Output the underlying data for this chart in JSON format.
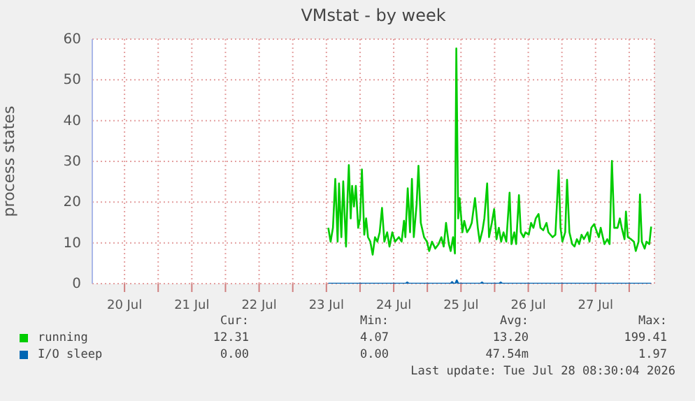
{
  "chart_data": {
    "type": "line",
    "title": "VMstat - by week",
    "ylabel": "process states",
    "xlim": [
      "2026-07-20T00:30",
      "2026-07-28T09:00"
    ],
    "ylim": [
      0,
      60
    ],
    "yticks": [
      0,
      10,
      20,
      30,
      40,
      50,
      60
    ],
    "xticks": [
      {
        "value": "2026-07-20T12:00",
        "label": "20 Jul"
      },
      {
        "value": "2026-07-21",
        "label": null
      },
      {
        "value": "2026-07-21T12:00",
        "label": "21 Jul"
      },
      {
        "value": "2026-07-22",
        "label": null
      },
      {
        "value": "2026-07-22T12:00",
        "label": "22 Jul"
      },
      {
        "value": "2026-07-23",
        "label": null
      },
      {
        "value": "2026-07-23T12:00",
        "label": "23 Jul"
      },
      {
        "value": "2026-07-24",
        "label": null
      },
      {
        "value": "2026-07-24T12:00",
        "label": "24 Jul"
      },
      {
        "value": "2026-07-25",
        "label": null
      },
      {
        "value": "2026-07-25T12:00",
        "label": "25 Jul"
      },
      {
        "value": "2026-07-26",
        "label": null
      },
      {
        "value": "2026-07-26T12:00",
        "label": "26 Jul"
      },
      {
        "value": "2026-07-27",
        "label": null
      },
      {
        "value": "2026-07-27T12:00",
        "label": "27 Jul"
      },
      {
        "value": "2026-07-28",
        "label": null
      }
    ],
    "grid": true,
    "legend": "bottom",
    "series": [
      {
        "name": "running",
        "color": "#00cc00",
        "x": [
          "2026-07-23T12:40",
          "2026-07-23T13:30",
          "2026-07-23T14:20",
          "2026-07-23T15:10",
          "2026-07-23T16:00",
          "2026-07-23T16:30",
          "2026-07-23T17:20",
          "2026-07-23T18:00",
          "2026-07-23T19:00",
          "2026-07-23T19:30",
          "2026-07-23T20:00",
          "2026-07-23T20:40",
          "2026-07-23T21:10",
          "2026-07-23T21:50",
          "2026-07-23T22:30",
          "2026-07-23T23:20",
          "2026-07-24T00:00",
          "2026-07-24T00:40",
          "2026-07-24T01:30",
          "2026-07-24T02:10",
          "2026-07-24T02:50",
          "2026-07-24T03:40",
          "2026-07-24T04:30",
          "2026-07-24T05:20",
          "2026-07-24T06:10",
          "2026-07-24T07:00",
          "2026-07-24T07:50",
          "2026-07-24T08:40",
          "2026-07-24T09:40",
          "2026-07-24T10:30",
          "2026-07-24T11:30",
          "2026-07-24T12:30",
          "2026-07-24T13:50",
          "2026-07-24T14:50",
          "2026-07-24T15:40",
          "2026-07-24T16:10",
          "2026-07-24T17:00",
          "2026-07-24T17:50",
          "2026-07-24T18:30",
          "2026-07-24T19:10",
          "2026-07-24T20:10",
          "2026-07-24T20:50",
          "2026-07-24T21:40",
          "2026-07-24T22:50",
          "2026-07-24T23:50",
          "2026-07-25T00:40",
          "2026-07-25T01:40",
          "2026-07-25T02:50",
          "2026-07-25T04:00",
          "2026-07-25T05:00",
          "2026-07-25T05:50",
          "2026-07-25T06:40",
          "2026-07-25T07:40",
          "2026-07-25T08:20",
          "2026-07-25T09:10",
          "2026-07-25T09:50",
          "2026-07-25T10:20",
          "2026-07-25T11:00",
          "2026-07-25T11:30",
          "2026-07-25T12:30",
          "2026-07-25T13:10",
          "2026-07-25T14:10",
          "2026-07-25T15:10",
          "2026-07-25T15:50",
          "2026-07-25T17:00",
          "2026-07-25T18:00",
          "2026-07-25T18:40",
          "2026-07-25T19:40",
          "2026-07-25T20:20",
          "2026-07-25T21:20",
          "2026-07-25T22:00",
          "2026-07-25T23:00",
          "2026-07-25T23:50",
          "2026-07-26T00:40",
          "2026-07-26T01:30",
          "2026-07-26T02:20",
          "2026-07-26T03:10",
          "2026-07-26T04:10",
          "2026-07-26T05:20",
          "2026-07-26T06:00",
          "2026-07-26T07:00",
          "2026-07-26T07:40",
          "2026-07-26T08:40",
          "2026-07-26T09:20",
          "2026-07-26T10:20",
          "2026-07-26T11:00",
          "2026-07-26T12:10",
          "2026-07-26T13:00",
          "2026-07-26T13:50",
          "2026-07-26T14:40",
          "2026-07-26T15:40",
          "2026-07-26T16:20",
          "2026-07-26T17:20",
          "2026-07-26T18:30",
          "2026-07-26T19:10",
          "2026-07-26T20:40",
          "2026-07-26T21:40",
          "2026-07-26T22:50",
          "2026-07-26T23:30",
          "2026-07-27T00:10",
          "2026-07-27T01:10",
          "2026-07-27T01:50",
          "2026-07-27T02:40",
          "2026-07-27T03:40",
          "2026-07-27T04:30",
          "2026-07-27T05:20",
          "2026-07-27T06:10",
          "2026-07-27T07:00",
          "2026-07-27T07:50",
          "2026-07-27T09:10",
          "2026-07-27T09:50",
          "2026-07-27T10:30",
          "2026-07-27T11:30",
          "2026-07-27T12:30",
          "2026-07-27T13:10",
          "2026-07-27T13:50",
          "2026-07-27T15:10",
          "2026-07-27T16:10",
          "2026-07-27T17:00",
          "2026-07-27T17:50",
          "2026-07-27T18:40",
          "2026-07-27T19:50",
          "2026-07-27T20:40",
          "2026-07-27T21:20",
          "2026-07-27T22:20",
          "2026-07-27T22:50",
          "2026-07-27T23:30",
          "2026-07-28T00:40",
          "2026-07-28T01:40",
          "2026-07-28T02:20",
          "2026-07-28T03:20",
          "2026-07-28T03:50",
          "2026-07-28T04:30",
          "2026-07-28T05:30",
          "2026-07-28T06:10",
          "2026-07-28T07:10",
          "2026-07-28T07:50"
        ],
        "values": [
          13.7,
          10.3,
          13.7,
          25.7,
          10.3,
          24.6,
          11.4,
          25.1,
          9.1,
          20.6,
          29.1,
          16.0,
          24.0,
          18.9,
          24.0,
          13.7,
          16.0,
          28.0,
          12.0,
          16.0,
          11.4,
          10.3,
          7.1,
          11.4,
          10.3,
          12.6,
          18.6,
          10.3,
          12.6,
          9.1,
          12.6,
          10.3,
          11.4,
          10.3,
          15.4,
          11.4,
          23.4,
          12.6,
          25.7,
          11.4,
          19.4,
          28.9,
          14.9,
          11.4,
          10.3,
          8.0,
          10.3,
          8.6,
          9.7,
          11.4,
          9.1,
          14.9,
          9.7,
          8.0,
          11.4,
          7.4,
          57.7,
          16.0,
          21.0,
          12.6,
          15.4,
          12.6,
          13.7,
          14.9,
          21.0,
          13.7,
          10.3,
          13.1,
          16.0,
          24.6,
          11.4,
          14.9,
          18.3,
          10.9,
          13.7,
          10.3,
          12.6,
          10.3,
          22.3,
          9.7,
          12.6,
          9.7,
          21.7,
          12.6,
          11.4,
          12.6,
          12.0,
          14.9,
          13.7,
          16.0,
          17.1,
          13.7,
          13.1,
          14.9,
          12.6,
          11.4,
          12.0,
          27.8,
          13.7,
          10.3,
          12.6,
          25.5,
          12.6,
          9.7,
          9.1,
          10.9,
          9.7,
          12.0,
          10.9,
          12.6,
          10.3,
          13.7,
          14.6,
          12.6,
          11.4,
          13.7,
          9.7,
          10.9,
          9.7,
          30.1,
          13.7,
          13.7,
          16.0,
          13.7,
          10.9,
          17.7,
          11.4,
          10.9,
          10.3,
          8.0,
          10.3,
          21.9,
          10.3,
          8.6,
          10.3,
          9.7,
          14.0
        ]
      },
      {
        "name": "I/O sleep",
        "color": "#0066b3",
        "x": [
          "2026-07-23T12:40",
          "2026-07-24T16:20",
          "2026-07-24T16:50",
          "2026-07-24T17:20",
          "2026-07-25T08:20",
          "2026-07-25T08:50",
          "2026-07-25T09:20",
          "2026-07-25T10:00",
          "2026-07-25T10:30",
          "2026-07-25T11:00",
          "2026-07-25T19:00",
          "2026-07-25T19:30",
          "2026-07-25T20:00",
          "2026-07-26T01:40",
          "2026-07-26T02:10",
          "2026-07-26T02:40",
          "2026-07-28T07:50"
        ],
        "values": [
          0,
          0,
          0.3,
          0,
          0,
          0.4,
          0,
          0,
          0.8,
          0,
          0,
          0.3,
          0,
          0,
          0.3,
          0,
          0
        ]
      }
    ],
    "annotations": [
      "Cur:",
      "Min:",
      "Avg:",
      "Max:",
      "12.31",
      "4.07",
      "13.20",
      "199.41",
      "0.00",
      "0.00",
      "47.54m",
      "1.97",
      "Last update: Tue Jul 28 08:30:04 2026"
    ]
  }
}
